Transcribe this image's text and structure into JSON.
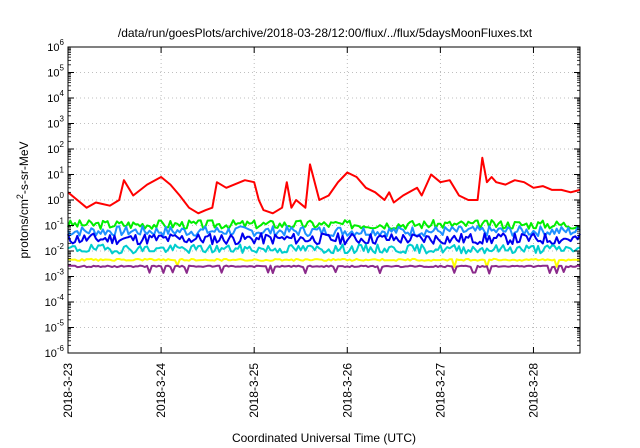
{
  "chart_data": {
    "type": "line",
    "title": "/data/run/goesPlots/archive/2018-03-28/12:00/flux/../flux/5daysMoonFluxes.txt",
    "xlabel": "Coordinated Universal Time (UTC)",
    "ylabel_base": "protons/cm",
    "ylabel_sup": "2",
    "ylabel_rest": "-s-sr-MeV",
    "yscale": "log",
    "ylim_exp": [
      -6,
      6
    ],
    "xlim": [
      "2018-03-23 00:00",
      "2018-03-28 12:00"
    ],
    "grid": true,
    "legend": "none",
    "x_ticks": [
      {
        "label": "2018-3-23",
        "t": 0
      },
      {
        "label": "2018-3-24",
        "t": 1
      },
      {
        "label": "2018-3-25",
        "t": 2
      },
      {
        "label": "2018-3-26",
        "t": 3
      },
      {
        "label": "2018-3-27",
        "t": 4
      },
      {
        "label": "2018-3-28",
        "t": 5
      }
    ],
    "y_ticks": [
      {
        "base": "10",
        "exp": "6",
        "e": 6
      },
      {
        "base": "10",
        "exp": "5",
        "e": 5
      },
      {
        "base": "10",
        "exp": "4",
        "e": 4
      },
      {
        "base": "10",
        "exp": "3",
        "e": 3
      },
      {
        "base": "10",
        "exp": "2",
        "e": 2
      },
      {
        "base": "10",
        "exp": "1",
        "e": 1
      },
      {
        "base": "10",
        "exp": "0",
        "e": 0
      },
      {
        "base": "10",
        "exp": "-1",
        "e": -1
      },
      {
        "base": "10",
        "exp": "-2",
        "e": -2
      },
      {
        "base": "10",
        "exp": "-3",
        "e": -3
      },
      {
        "base": "10",
        "exp": "-4",
        "e": -4
      },
      {
        "base": "10",
        "exp": "-5",
        "e": -5
      },
      {
        "base": "10",
        "exp": "-6",
        "e": -6
      }
    ],
    "series": [
      {
        "color": "#ff0000",
        "width": 2,
        "x": [
          0,
          0.1,
          0.2,
          0.3,
          0.45,
          0.55,
          0.6,
          0.7,
          0.85,
          1.0,
          1.1,
          1.2,
          1.3,
          1.4,
          1.48,
          1.55,
          1.6,
          1.7,
          1.9,
          2.0,
          2.05,
          2.1,
          2.2,
          2.3,
          2.35,
          2.4,
          2.45,
          2.55,
          2.6,
          2.7,
          2.8,
          2.9,
          3.0,
          3.1,
          3.2,
          3.3,
          3.4,
          3.45,
          3.5,
          3.6,
          3.75,
          3.8,
          3.9,
          4.0,
          4.1,
          4.2,
          4.3,
          4.4,
          4.45,
          4.5,
          4.55,
          4.6,
          4.7,
          4.8,
          4.9,
          5.0,
          5.1,
          5.2,
          5.3,
          5.4,
          5.5
        ],
        "y": [
          2.0,
          1.0,
          0.5,
          0.8,
          0.6,
          1.0,
          6.0,
          1.5,
          4.0,
          8.0,
          4.0,
          1.5,
          0.5,
          0.3,
          0.4,
          0.5,
          5.0,
          3.0,
          6.0,
          5.0,
          1.0,
          0.4,
          0.3,
          0.5,
          5.0,
          0.5,
          1.0,
          0.5,
          25.0,
          1.0,
          1.5,
          5.0,
          12.0,
          8.0,
          3.0,
          2.0,
          1.0,
          2.0,
          0.8,
          1.5,
          3.0,
          1.5,
          10.0,
          5.0,
          6.0,
          1.5,
          1.0,
          1.0,
          45.0,
          5.0,
          8.0,
          5.0,
          4.0,
          6.0,
          5.0,
          3.0,
          3.5,
          2.5,
          2.5,
          2.0,
          2.5
        ]
      },
      {
        "color": "#00ee00",
        "width": 2,
        "base": 0.11,
        "amp": 0.35,
        "seed": 3
      },
      {
        "color": "#1e90ff",
        "width": 2,
        "base": 0.06,
        "amp": 0.4,
        "seed": 7
      },
      {
        "color": "#0000ee",
        "width": 2,
        "base": 0.03,
        "amp": 0.45,
        "seed": 11
      },
      {
        "color": "#00cdcd",
        "width": 2,
        "base": 0.012,
        "amp": 0.35,
        "seed": 19
      },
      {
        "color": "#ffff00",
        "width": 2,
        "base": 0.0045,
        "amp": 0.08,
        "seed": 23
      },
      {
        "color": "#8b2a8b",
        "width": 2,
        "base": 0.0025,
        "amp": 0.06,
        "seed": 29
      }
    ]
  }
}
